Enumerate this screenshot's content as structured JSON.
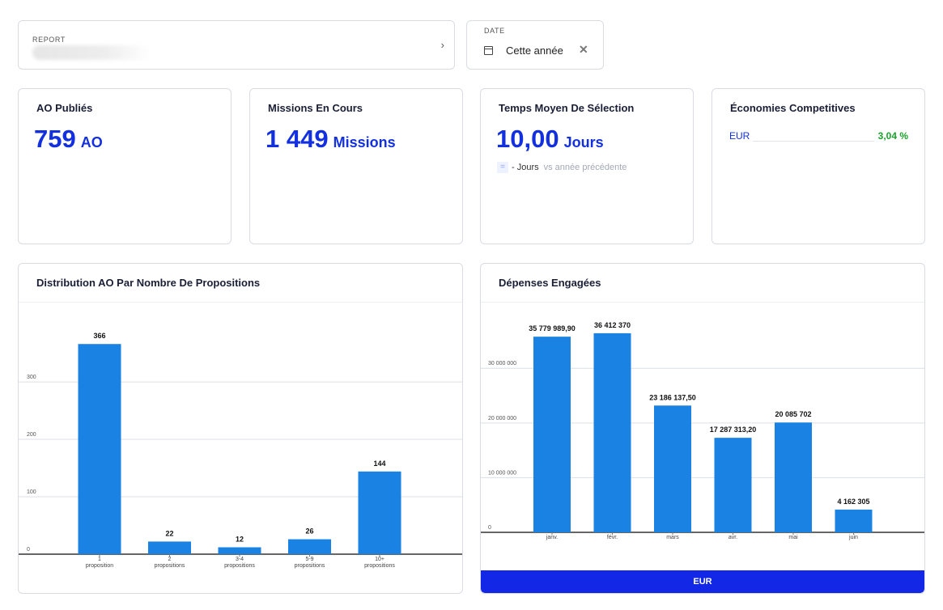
{
  "filters": {
    "report": {
      "label": "REPORT",
      "chevron": "›"
    },
    "date": {
      "label": "DATE",
      "value": "Cette année",
      "clear": "✕"
    }
  },
  "kpis": {
    "ao": {
      "title": "AO Publiés",
      "value": "759",
      "unit": "AO"
    },
    "missions": {
      "title": "Missions En Cours",
      "value": "1 449",
      "unit": "Missions"
    },
    "temps": {
      "title": "Temps Moyen De Sélection",
      "value": "10,00",
      "unit": "Jours",
      "cmp_symbol": "=",
      "cmp_value": "- Jours",
      "cmp_text": "vs année précédente"
    },
    "economies": {
      "title": "Économies Competitives",
      "currency": "EUR",
      "percent": "3,04 %"
    }
  },
  "charts": {
    "distribution": {
      "title": "Distribution AO Par Nombre De Propositions"
    },
    "depenses": {
      "title": "Dépenses Engagées",
      "currency_button": "EUR"
    }
  },
  "colors": {
    "accent": "#1230e0",
    "bar": "#1a82e2",
    "positive": "#1aa32b"
  },
  "chart_data": [
    {
      "type": "bar",
      "categories": [
        [
          "1",
          "proposition"
        ],
        [
          "2",
          "propositions"
        ],
        [
          "3-4",
          "propositions"
        ],
        [
          "5-9",
          "propositions"
        ],
        [
          "10+",
          "propositions"
        ]
      ],
      "values": [
        366,
        22,
        12,
        26,
        144
      ],
      "value_labels": [
        "366",
        "22",
        "12",
        "26",
        "144"
      ],
      "yticks": [
        0,
        100,
        200,
        300
      ],
      "ytick_labels": [
        "0",
        "100",
        "200",
        "300"
      ],
      "ylim": [
        0,
        410
      ],
      "grid": true
    },
    {
      "type": "bar",
      "categories": [
        [
          "janv."
        ],
        [
          "févr."
        ],
        [
          "mars"
        ],
        [
          "avr."
        ],
        [
          "mai"
        ],
        [
          "juin"
        ]
      ],
      "values": [
        35779989.9,
        36412370,
        23186137.5,
        17287313.2,
        20085702,
        4162305
      ],
      "value_labels": [
        "35 779 989,90",
        "36 412 370",
        "23 186 137,50",
        "17 287 313,20",
        "20 085 702",
        "4 162 305"
      ],
      "yticks": [
        0,
        10000000,
        20000000,
        30000000
      ],
      "ytick_labels": [
        "0",
        "10 000 000",
        "20 000 000",
        "30 000 000"
      ],
      "ylim": [
        0,
        40833000
      ],
      "grid": true
    }
  ]
}
